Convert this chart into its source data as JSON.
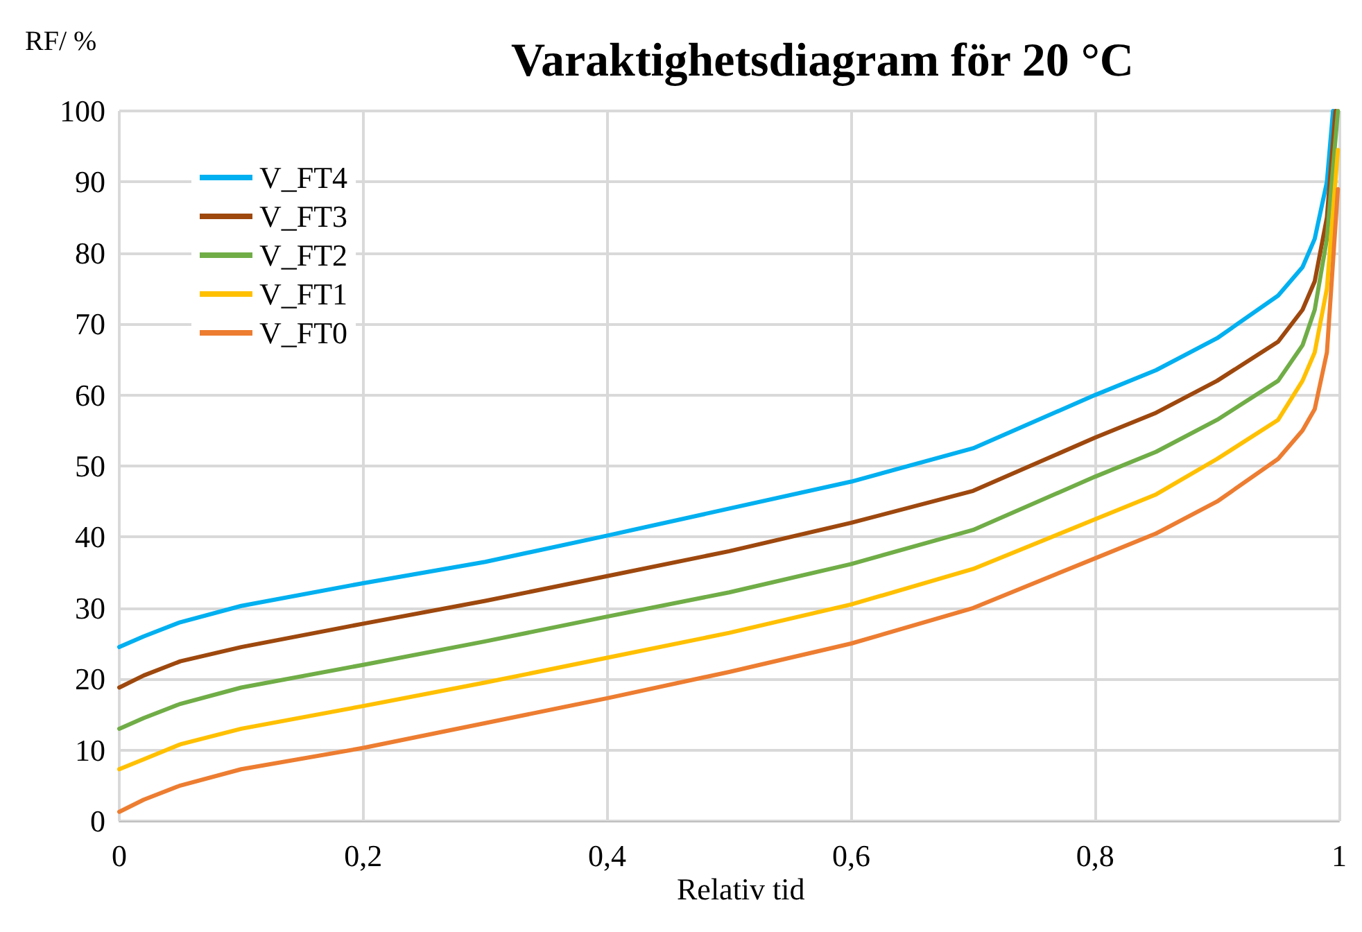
{
  "chart_data": {
    "type": "line",
    "title": "Varaktighetsdiagram för 20 °C",
    "xlabel": "Relativ tid",
    "ylabel": "RF/ %",
    "xlim": [
      0,
      1
    ],
    "xticks": [
      0,
      {
        "value": 0.2,
        "label": "0,2"
      },
      {
        "value": 0.4,
        "label": "0,4"
      },
      {
        "value": 0.6,
        "label": "0,6"
      },
      {
        "value": 0.8,
        "label": "0,8"
      },
      1
    ],
    "ylim": [
      0,
      100
    ],
    "yticks": [
      0,
      10,
      20,
      30,
      40,
      50,
      60,
      70,
      80,
      90,
      100
    ],
    "grid": true,
    "legend": "top left",
    "marker": "none",
    "line_style": "solid",
    "series": [
      {
        "name": "V_FT4",
        "color": "#00b0f0",
        "x": [
          0,
          0.02,
          0.05,
          0.1,
          0.2,
          0.3,
          0.4,
          0.5,
          0.6,
          0.7,
          0.8,
          0.85,
          0.9,
          0.95,
          0.97,
          0.98,
          0.99,
          0.995
        ],
        "values": [
          24.5,
          26,
          28,
          30.3,
          33.5,
          36.5,
          40.2,
          44,
          47.8,
          52.5,
          60,
          63.5,
          68,
          74,
          78,
          82,
          90,
          100
        ]
      },
      {
        "name": "V_FT3",
        "color": "#9e480e",
        "x": [
          0,
          0.02,
          0.05,
          0.1,
          0.2,
          0.3,
          0.4,
          0.5,
          0.6,
          0.7,
          0.8,
          0.85,
          0.9,
          0.95,
          0.97,
          0.98,
          0.99,
          0.997
        ],
        "values": [
          18.8,
          20.5,
          22.5,
          24.5,
          27.8,
          31,
          34.5,
          38,
          42,
          46.5,
          54,
          57.5,
          62,
          67.5,
          72,
          76,
          85,
          100
        ]
      },
      {
        "name": "V_FT2",
        "color": "#70ad47",
        "x": [
          0,
          0.02,
          0.05,
          0.1,
          0.2,
          0.3,
          0.4,
          0.5,
          0.6,
          0.7,
          0.8,
          0.85,
          0.9,
          0.95,
          0.97,
          0.98,
          0.99,
          0.999
        ],
        "values": [
          13,
          14.5,
          16.5,
          18.8,
          22,
          25.3,
          28.8,
          32.2,
          36.2,
          41,
          48.5,
          52,
          56.5,
          62,
          67,
          72,
          82,
          100
        ]
      },
      {
        "name": "V_FT1",
        "color": "#ffc000",
        "x": [
          0,
          0.02,
          0.05,
          0.1,
          0.2,
          0.3,
          0.4,
          0.5,
          0.6,
          0.7,
          0.8,
          0.85,
          0.9,
          0.95,
          0.97,
          0.98,
          0.99,
          0.999
        ],
        "values": [
          7.3,
          8.7,
          10.8,
          13,
          16.2,
          19.5,
          23,
          26.5,
          30.5,
          35.5,
          42.5,
          46,
          51,
          56.5,
          62,
          66,
          75,
          94.5
        ]
      },
      {
        "name": "V_FT0",
        "color": "#ed7d31",
        "x": [
          0,
          0.02,
          0.05,
          0.1,
          0.2,
          0.3,
          0.4,
          0.5,
          0.6,
          0.7,
          0.8,
          0.85,
          0.9,
          0.95,
          0.97,
          0.98,
          0.99,
          0.999
        ],
        "values": [
          1.3,
          3,
          5,
          7.3,
          10.3,
          13.8,
          17.3,
          21,
          25,
          30,
          37,
          40.5,
          45,
          51,
          55,
          58,
          66,
          89
        ]
      }
    ]
  }
}
